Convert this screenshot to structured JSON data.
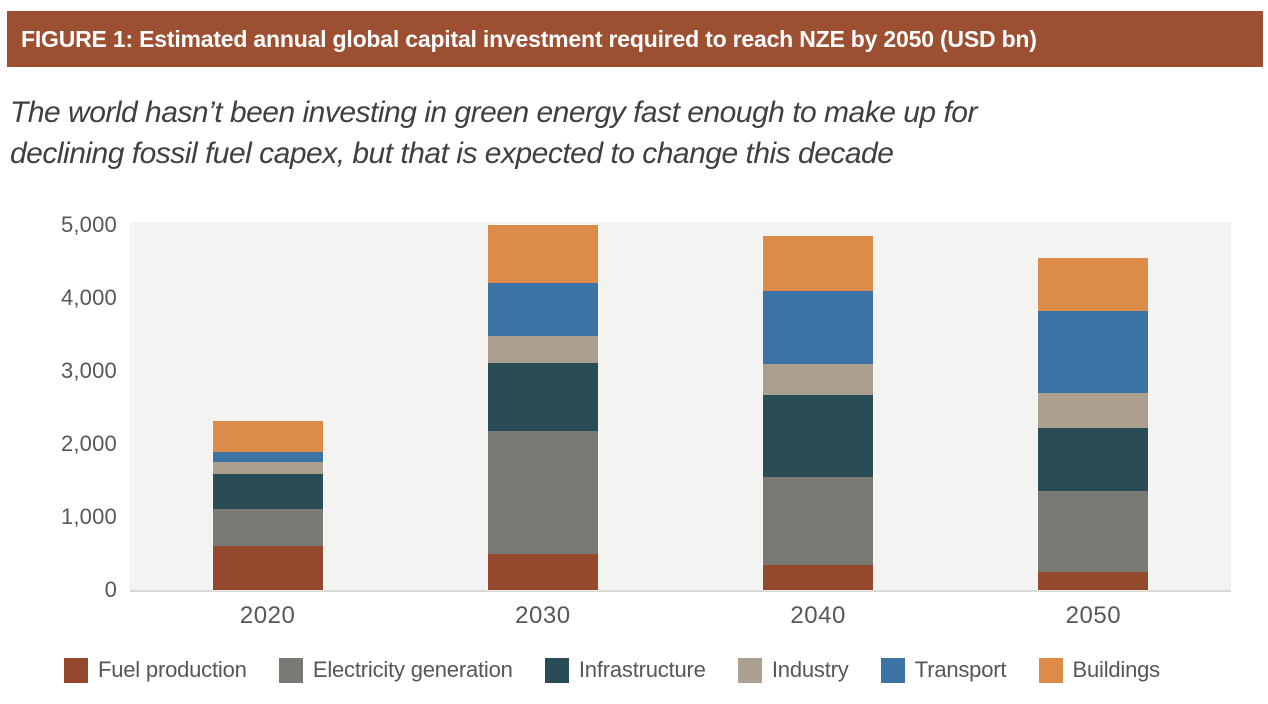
{
  "figure": {
    "header": "FIGURE 1: Estimated annual global capital investment required to reach NZE by 2050 (USD bn)",
    "subtitle_line1": "The world hasn’t been investing in green energy fast enough to make up for",
    "subtitle_line2": "declining fossil fuel capex, but that is expected to change this decade"
  },
  "colors": {
    "header_bg": "#9C4F31",
    "header_text": "#FFFFFF",
    "subtitle_text": "#3E3F41",
    "plot_bg": "#F3F3F1",
    "axis_line": "#D8D8D5",
    "tick_text": "#56575A"
  },
  "chart_data": {
    "type": "bar",
    "stacked": true,
    "title": "Estimated annual global capital investment required to reach NZE by 2050 (USD bn)",
    "xlabel": "",
    "ylabel": "",
    "ylim": [
      0,
      5000
    ],
    "grid": false,
    "legend_position": "bottom",
    "categories": [
      "2020",
      "2030",
      "2040",
      "2050"
    ],
    "yticks": [
      {
        "value": 0,
        "label": "0"
      },
      {
        "value": 1000,
        "label": "1,000"
      },
      {
        "value": 2000,
        "label": "2,000"
      },
      {
        "value": 3000,
        "label": "3,000"
      },
      {
        "value": 4000,
        "label": "4,000"
      },
      {
        "value": 5000,
        "label": "5,000"
      }
    ],
    "series": [
      {
        "name": "Fuel production",
        "color": "#95492C",
        "values": [
          600,
          500,
          345,
          250
        ]
      },
      {
        "name": "Electricity generation",
        "color": "#777972",
        "values": [
          505,
          1675,
          1205,
          1100
        ]
      },
      {
        "name": "Infrastructure",
        "color": "#2A4C56",
        "values": [
          480,
          940,
          1120,
          875
        ]
      },
      {
        "name": "Industry",
        "color": "#ABA08F",
        "values": [
          170,
          365,
          425,
          475
        ]
      },
      {
        "name": "Transport",
        "color": "#3B74A4",
        "values": [
          140,
          730,
          995,
          1125
        ]
      },
      {
        "name": "Buildings",
        "color": "#DC8B49",
        "values": [
          420,
          790,
          765,
          730
        ]
      }
    ],
    "totals": [
      2315,
      5000,
      4855,
      4555
    ]
  }
}
